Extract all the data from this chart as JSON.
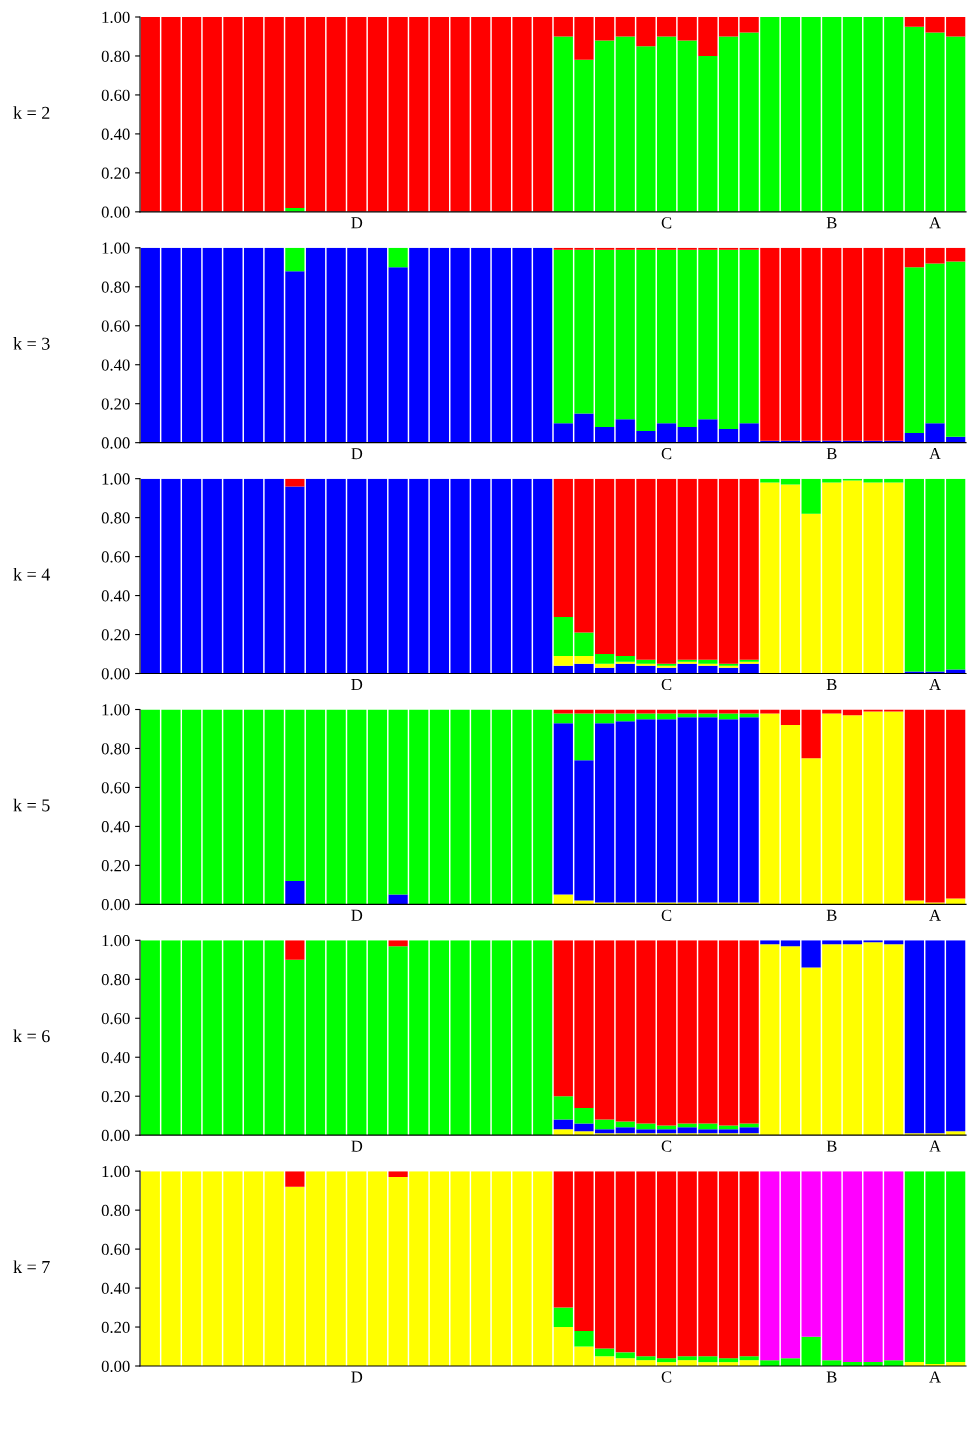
{
  "chart_data": [
    {
      "type": "bar",
      "stacked": true,
      "ylabel": "k = 2",
      "ylim": [
        0,
        1
      ],
      "yticks": [
        {
          "value": 0,
          "label": "0.00"
        },
        {
          "value": 0.2,
          "label": "0.20"
        },
        {
          "value": 0.4,
          "label": "0.40"
        },
        {
          "value": 0.6,
          "label": "0.60"
        },
        {
          "value": 0.8,
          "label": "0.80"
        },
        {
          "value": 1,
          "label": "1.00"
        }
      ],
      "categories": [
        null,
        null,
        null,
        null,
        null,
        null,
        null,
        null,
        null,
        null,
        "D",
        null,
        null,
        null,
        null,
        null,
        null,
        null,
        null,
        null,
        null,
        null,
        null,
        null,
        null,
        "C",
        null,
        null,
        null,
        null,
        null,
        null,
        null,
        "B",
        null,
        null,
        null,
        null,
        "A",
        null
      ],
      "series": [
        {
          "color": "#00ff00",
          "values": [
            0,
            0,
            0,
            0,
            0,
            0,
            0,
            0.02,
            0,
            0,
            0,
            0,
            0,
            0,
            0,
            0,
            0,
            0,
            0,
            0,
            0.9,
            0.78,
            0.88,
            0.9,
            0.85,
            0.9,
            0.88,
            0.8,
            0.9,
            0.92,
            1,
            1,
            1,
            1,
            1,
            1,
            1,
            0.95,
            0.92,
            0.9
          ]
        },
        {
          "color": "#ff0000",
          "values": [
            1,
            1,
            1,
            1,
            1,
            1,
            1,
            0.98,
            1,
            1,
            1,
            1,
            1,
            1,
            1,
            1,
            1,
            1,
            1,
            1,
            0.1,
            0.22,
            0.12,
            0.1,
            0.15,
            0.1,
            0.12,
            0.2,
            0.1,
            0.08,
            0,
            0,
            0,
            0,
            0,
            0,
            0,
            0.05,
            0.08,
            0.1
          ]
        }
      ]
    },
    {
      "type": "bar",
      "stacked": true,
      "ylabel": "k = 3",
      "ylim": [
        0,
        1
      ],
      "yticks": [
        {
          "value": 0,
          "label": "0.00"
        },
        {
          "value": 0.2,
          "label": "0.20"
        },
        {
          "value": 0.4,
          "label": "0.40"
        },
        {
          "value": 0.6,
          "label": "0.60"
        },
        {
          "value": 0.8,
          "label": "0.80"
        },
        {
          "value": 1,
          "label": "1.00"
        }
      ],
      "categories": [
        null,
        null,
        null,
        null,
        null,
        null,
        null,
        null,
        null,
        null,
        "D",
        null,
        null,
        null,
        null,
        null,
        null,
        null,
        null,
        null,
        null,
        null,
        null,
        null,
        null,
        "C",
        null,
        null,
        null,
        null,
        null,
        null,
        null,
        "B",
        null,
        null,
        null,
        null,
        "A",
        null
      ],
      "series": [
        {
          "color": "#0000ff",
          "values": [
            1,
            1,
            1,
            1,
            1,
            1,
            1,
            0.88,
            1,
            1,
            1,
            1,
            0.9,
            1,
            1,
            1,
            1,
            1,
            1,
            1,
            0.1,
            0.15,
            0.08,
            0.12,
            0.06,
            0.1,
            0.08,
            0.12,
            0.07,
            0.1,
            0.01,
            0.01,
            0.01,
            0.01,
            0.01,
            0.01,
            0.01,
            0.05,
            0.1,
            0.03
          ]
        },
        {
          "color": "#00ff00",
          "values": [
            0,
            0,
            0,
            0,
            0,
            0,
            0,
            0.12,
            0,
            0,
            0,
            0,
            0.1,
            0,
            0,
            0,
            0,
            0,
            0,
            0,
            0.89,
            0.84,
            0.91,
            0.87,
            0.93,
            0.89,
            0.91,
            0.87,
            0.92,
            0.89,
            0,
            0,
            0,
            0,
            0,
            0,
            0,
            0.85,
            0.82,
            0.9
          ]
        },
        {
          "color": "#ff0000",
          "values": [
            0,
            0,
            0,
            0,
            0,
            0,
            0,
            0,
            0,
            0,
            0,
            0,
            0,
            0,
            0,
            0,
            0,
            0,
            0,
            0,
            0.01,
            0.01,
            0.01,
            0.01,
            0.01,
            0.01,
            0.01,
            0.01,
            0.01,
            0.01,
            0.99,
            0.99,
            0.99,
            0.99,
            0.99,
            0.99,
            0.99,
            0.1,
            0.08,
            0.07
          ]
        }
      ]
    },
    {
      "type": "bar",
      "stacked": true,
      "ylabel": "k = 4",
      "ylim": [
        0,
        1
      ],
      "yticks": [
        {
          "value": 0,
          "label": "0.00"
        },
        {
          "value": 0.2,
          "label": "0.20"
        },
        {
          "value": 0.4,
          "label": "0.40"
        },
        {
          "value": 0.6,
          "label": "0.60"
        },
        {
          "value": 0.8,
          "label": "0.80"
        },
        {
          "value": 1,
          "label": "1.00"
        }
      ],
      "categories": [
        null,
        null,
        null,
        null,
        null,
        null,
        null,
        null,
        null,
        null,
        "D",
        null,
        null,
        null,
        null,
        null,
        null,
        null,
        null,
        null,
        null,
        null,
        null,
        null,
        null,
        "C",
        null,
        null,
        null,
        null,
        null,
        null,
        null,
        "B",
        null,
        null,
        null,
        null,
        "A",
        null
      ],
      "series": [
        {
          "color": "#0000ff",
          "values": [
            1,
            1,
            1,
            1,
            1,
            1,
            1,
            0.96,
            1,
            1,
            1,
            1,
            1,
            1,
            1,
            1,
            1,
            1,
            1,
            1,
            0.04,
            0.05,
            0.03,
            0.05,
            0.04,
            0.03,
            0.05,
            0.04,
            0.03,
            0.05,
            0,
            0,
            0,
            0,
            0,
            0,
            0,
            0.01,
            0.01,
            0.02
          ]
        },
        {
          "color": "#ffff00",
          "values": [
            0,
            0,
            0,
            0,
            0,
            0,
            0,
            0,
            0,
            0,
            0,
            0,
            0,
            0,
            0,
            0,
            0,
            0,
            0,
            0,
            0.05,
            0.04,
            0.02,
            0.01,
            0.01,
            0.01,
            0.01,
            0.01,
            0.01,
            0.01,
            0.98,
            0.97,
            0.82,
            0.98,
            0.99,
            0.98,
            0.98,
            0,
            0,
            0
          ]
        },
        {
          "color": "#00ff00",
          "values": [
            0,
            0,
            0,
            0,
            0,
            0,
            0,
            0,
            0,
            0,
            0,
            0,
            0,
            0,
            0,
            0,
            0,
            0,
            0,
            0,
            0.2,
            0.12,
            0.05,
            0.03,
            0.02,
            0.01,
            0.01,
            0.02,
            0.01,
            0.01,
            0.02,
            0.03,
            0.18,
            0.02,
            0.01,
            0.02,
            0.02,
            0.99,
            0.99,
            0.98
          ]
        },
        {
          "color": "#ff0000",
          "values": [
            0,
            0,
            0,
            0,
            0,
            0,
            0,
            0.04,
            0,
            0,
            0,
            0,
            0,
            0,
            0,
            0,
            0,
            0,
            0,
            0,
            0.71,
            0.79,
            0.9,
            0.91,
            0.93,
            0.95,
            0.93,
            0.93,
            0.95,
            0.93,
            0,
            0,
            0,
            0,
            0,
            0,
            0,
            0,
            0,
            0
          ]
        }
      ]
    },
    {
      "type": "bar",
      "stacked": true,
      "ylabel": "k = 5",
      "ylim": [
        0,
        1
      ],
      "yticks": [
        {
          "value": 0,
          "label": "0.00"
        },
        {
          "value": 0.2,
          "label": "0.20"
        },
        {
          "value": 0.4,
          "label": "0.40"
        },
        {
          "value": 0.6,
          "label": "0.60"
        },
        {
          "value": 0.8,
          "label": "0.80"
        },
        {
          "value": 1,
          "label": "1.00"
        }
      ],
      "categories": [
        null,
        null,
        null,
        null,
        null,
        null,
        null,
        null,
        null,
        null,
        "D",
        null,
        null,
        null,
        null,
        null,
        null,
        null,
        null,
        null,
        null,
        null,
        null,
        null,
        null,
        "C",
        null,
        null,
        null,
        null,
        null,
        null,
        null,
        "B",
        null,
        null,
        null,
        null,
        "A",
        null
      ],
      "series": [
        {
          "color": "#ffff00",
          "values": [
            0,
            0,
            0,
            0,
            0,
            0,
            0,
            0,
            0,
            0,
            0,
            0,
            0,
            0,
            0,
            0,
            0,
            0,
            0,
            0,
            0.05,
            0.02,
            0.01,
            0.01,
            0.01,
            0.01,
            0.01,
            0.01,
            0.01,
            0.01,
            0.98,
            0.92,
            0.75,
            0.98,
            0.97,
            0.99,
            0.99,
            0.02,
            0.01,
            0.03
          ]
        },
        {
          "color": "#0000ff",
          "values": [
            0,
            0,
            0,
            0,
            0,
            0,
            0,
            0.12,
            0,
            0,
            0,
            0,
            0.05,
            0,
            0,
            0,
            0,
            0,
            0,
            0,
            0.88,
            0.72,
            0.92,
            0.93,
            0.94,
            0.94,
            0.95,
            0.95,
            0.94,
            0.95,
            0,
            0,
            0,
            0,
            0,
            0,
            0,
            0,
            0,
            0
          ]
        },
        {
          "color": "#00ff00",
          "values": [
            1,
            1,
            1,
            1,
            1,
            1,
            1,
            0.88,
            1,
            1,
            1,
            1,
            0.95,
            1,
            1,
            1,
            1,
            1,
            1,
            1,
            0.05,
            0.24,
            0.05,
            0.04,
            0.03,
            0.03,
            0.02,
            0.02,
            0.03,
            0.02,
            0,
            0,
            0,
            0,
            0,
            0,
            0,
            0,
            0,
            0
          ]
        },
        {
          "color": "#ff0000",
          "values": [
            0,
            0,
            0,
            0,
            0,
            0,
            0,
            0,
            0,
            0,
            0,
            0,
            0,
            0,
            0,
            0,
            0,
            0,
            0,
            0,
            0.02,
            0.02,
            0.02,
            0.02,
            0.02,
            0.02,
            0.02,
            0.02,
            0.02,
            0.02,
            0.02,
            0.08,
            0.25,
            0.02,
            0.03,
            0.01,
            0.01,
            0.98,
            0.99,
            0.97
          ]
        }
      ]
    },
    {
      "type": "bar",
      "stacked": true,
      "ylabel": "k = 6",
      "ylim": [
        0,
        1
      ],
      "yticks": [
        {
          "value": 0,
          "label": "0.00"
        },
        {
          "value": 0.2,
          "label": "0.20"
        },
        {
          "value": 0.4,
          "label": "0.40"
        },
        {
          "value": 0.6,
          "label": "0.60"
        },
        {
          "value": 0.8,
          "label": "0.80"
        },
        {
          "value": 1,
          "label": "1.00"
        }
      ],
      "categories": [
        null,
        null,
        null,
        null,
        null,
        null,
        null,
        null,
        null,
        null,
        "D",
        null,
        null,
        null,
        null,
        null,
        null,
        null,
        null,
        null,
        null,
        null,
        null,
        null,
        null,
        "C",
        null,
        null,
        null,
        null,
        null,
        null,
        null,
        "B",
        null,
        null,
        null,
        null,
        "A",
        null
      ],
      "series": [
        {
          "color": "#ffff00",
          "values": [
            0,
            0,
            0,
            0,
            0,
            0,
            0,
            0,
            0,
            0,
            0,
            0,
            0,
            0,
            0,
            0,
            0,
            0,
            0,
            0,
            0.03,
            0.02,
            0.01,
            0.01,
            0.01,
            0.01,
            0.01,
            0.01,
            0.01,
            0.01,
            0.98,
            0.97,
            0.86,
            0.98,
            0.98,
            0.99,
            0.98,
            0.01,
            0.01,
            0.02
          ]
        },
        {
          "color": "#0000ff",
          "values": [
            0,
            0,
            0,
            0,
            0,
            0,
            0,
            0,
            0,
            0,
            0,
            0,
            0,
            0,
            0,
            0,
            0,
            0,
            0,
            0,
            0.05,
            0.04,
            0.02,
            0.03,
            0.02,
            0.02,
            0.03,
            0.02,
            0.02,
            0.03,
            0.02,
            0.03,
            0.14,
            0.02,
            0.02,
            0.01,
            0.02,
            0.99,
            0.99,
            0.98
          ]
        },
        {
          "color": "#00ff00",
          "values": [
            1,
            1,
            1,
            1,
            1,
            1,
            1,
            0.9,
            1,
            1,
            1,
            1,
            0.97,
            1,
            1,
            1,
            1,
            1,
            1,
            1,
            0.12,
            0.08,
            0.05,
            0.03,
            0.03,
            0.02,
            0.02,
            0.03,
            0.02,
            0.02,
            0,
            0,
            0,
            0,
            0,
            0,
            0,
            0,
            0,
            0
          ]
        },
        {
          "color": "#ff0000",
          "values": [
            0,
            0,
            0,
            0,
            0,
            0,
            0,
            0.1,
            0,
            0,
            0,
            0,
            0.03,
            0,
            0,
            0,
            0,
            0,
            0,
            0,
            0.8,
            0.86,
            0.92,
            0.93,
            0.94,
            0.95,
            0.94,
            0.94,
            0.95,
            0.94,
            0,
            0,
            0,
            0,
            0,
            0,
            0,
            0,
            0,
            0
          ]
        }
      ]
    },
    {
      "type": "bar",
      "stacked": true,
      "ylabel": "k = 7",
      "ylim": [
        0,
        1
      ],
      "yticks": [
        {
          "value": 0,
          "label": "0.00"
        },
        {
          "value": 0.2,
          "label": "0.20"
        },
        {
          "value": 0.4,
          "label": "0.40"
        },
        {
          "value": 0.6,
          "label": "0.60"
        },
        {
          "value": 0.8,
          "label": "0.80"
        },
        {
          "value": 1,
          "label": "1.00"
        }
      ],
      "categories": [
        null,
        null,
        null,
        null,
        null,
        null,
        null,
        null,
        null,
        null,
        "D",
        null,
        null,
        null,
        null,
        null,
        null,
        null,
        null,
        null,
        null,
        null,
        null,
        null,
        null,
        "C",
        null,
        null,
        null,
        null,
        null,
        null,
        null,
        "B",
        null,
        null,
        null,
        null,
        "A",
        null
      ],
      "series": [
        {
          "color": "#ffff00",
          "values": [
            1,
            1,
            1,
            1,
            1,
            1,
            1,
            0.92,
            1,
            1,
            1,
            1,
            0.97,
            1,
            1,
            1,
            1,
            1,
            1,
            1,
            0.2,
            0.1,
            0.05,
            0.04,
            0.03,
            0.02,
            0.03,
            0.02,
            0.02,
            0.03,
            0,
            0,
            0,
            0,
            0,
            0,
            0,
            0.02,
            0.01,
            0.02
          ]
        },
        {
          "color": "#00ff00",
          "values": [
            0,
            0,
            0,
            0,
            0,
            0,
            0,
            0,
            0,
            0,
            0,
            0,
            0,
            0,
            0,
            0,
            0,
            0,
            0,
            0,
            0.1,
            0.08,
            0.04,
            0.03,
            0.02,
            0.02,
            0.02,
            0.03,
            0.02,
            0.02,
            0.03,
            0.04,
            0.15,
            0.03,
            0.02,
            0.02,
            0.03,
            0.98,
            0.99,
            0.98
          ]
        },
        {
          "color": "#ff00ff",
          "values": [
            0,
            0,
            0,
            0,
            0,
            0,
            0,
            0,
            0,
            0,
            0,
            0,
            0,
            0,
            0,
            0,
            0,
            0,
            0,
            0,
            0,
            0,
            0,
            0,
            0,
            0,
            0,
            0,
            0,
            0,
            0.97,
            0.96,
            0.85,
            0.97,
            0.98,
            0.98,
            0.97,
            0,
            0,
            0
          ]
        },
        {
          "color": "#ff0000",
          "values": [
            0,
            0,
            0,
            0,
            0,
            0,
            0,
            0.08,
            0,
            0,
            0,
            0,
            0.03,
            0,
            0,
            0,
            0,
            0,
            0,
            0,
            0.7,
            0.82,
            0.91,
            0.93,
            0.95,
            0.96,
            0.95,
            0.95,
            0.96,
            0.95,
            0,
            0,
            0,
            0,
            0,
            0,
            0,
            0,
            0,
            0
          ]
        }
      ]
    }
  ]
}
